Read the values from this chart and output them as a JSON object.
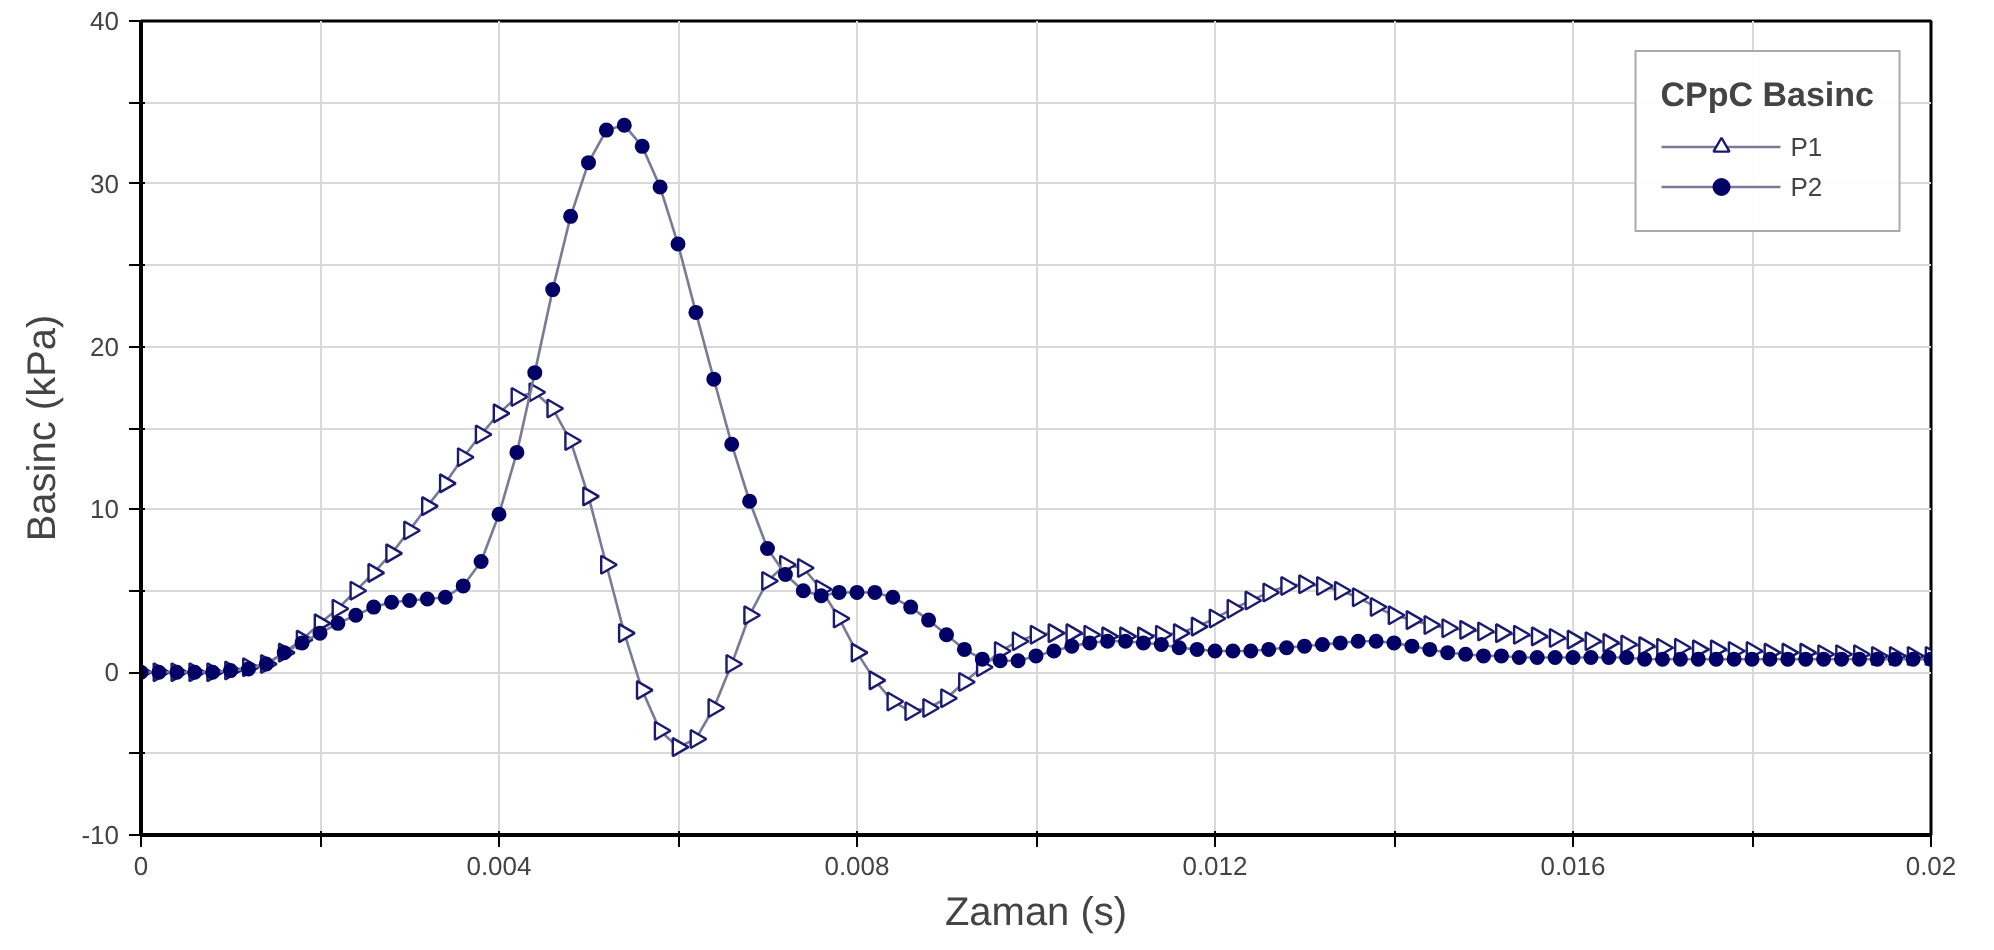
{
  "chart_data": {
    "type": "line",
    "xlabel": "Zaman (s)",
    "ylabel": "Basinc (kPa)",
    "legend_title": "CPpC Basinc",
    "x": [
      0,
      0.0002,
      0.0004,
      0.0006,
      0.0008,
      0.001,
      0.0012,
      0.0014,
      0.0016,
      0.0018,
      0.002,
      0.0022,
      0.0024,
      0.0026,
      0.0028,
      0.003,
      0.0032,
      0.0034,
      0.0036,
      0.0038,
      0.004,
      0.0042,
      0.0044,
      0.0046,
      0.0048,
      0.005,
      0.0052,
      0.0054,
      0.0056,
      0.0058,
      0.006,
      0.0062,
      0.0064,
      0.0066,
      0.0068,
      0.007,
      0.0072,
      0.0074,
      0.0076,
      0.0078,
      0.008,
      0.0082,
      0.0084,
      0.0086,
      0.0088,
      0.009,
      0.0092,
      0.0094,
      0.0096,
      0.0098,
      0.01,
      0.0102,
      0.0104,
      0.0106,
      0.0108,
      0.011,
      0.0112,
      0.0114,
      0.0116,
      0.0118,
      0.012,
      0.0122,
      0.0124,
      0.0126,
      0.0128,
      0.013,
      0.0132,
      0.0134,
      0.0136,
      0.0138,
      0.014,
      0.0142,
      0.0144,
      0.0146,
      0.0148,
      0.015,
      0.0152,
      0.0154,
      0.0156,
      0.0158,
      0.016,
      0.0162,
      0.0164,
      0.0166,
      0.0168,
      0.017,
      0.0172,
      0.0174,
      0.0176,
      0.0178,
      0.018,
      0.0182,
      0.0184,
      0.0186,
      0.0188,
      0.019,
      0.0192,
      0.0194,
      0.0196,
      0.0198,
      0.02
    ],
    "series": [
      {
        "name": "P1",
        "color": "#1a1a6e",
        "marker": "triangle",
        "values": [
          0,
          0,
          0,
          0,
          0,
          0.1,
          0.3,
          0.5,
          1.2,
          2.0,
          3.0,
          3.9,
          5.0,
          6.1,
          7.3,
          8.7,
          10.2,
          11.6,
          13.2,
          14.6,
          15.9,
          16.9,
          17.2,
          16.2,
          14.2,
          10.8,
          6.6,
          2.4,
          -1.1,
          -3.6,
          -4.6,
          -4.1,
          -2.2,
          0.5,
          3.5,
          5.6,
          6.6,
          6.4,
          5.1,
          3.3,
          1.2,
          -0.5,
          -1.8,
          -2.4,
          -2.2,
          -1.6,
          -0.6,
          0.3,
          1.3,
          1.9,
          2.3,
          2.4,
          2.4,
          2.3,
          2.2,
          2.2,
          2.2,
          2.3,
          2.4,
          2.8,
          3.3,
          3.9,
          4.4,
          4.9,
          5.3,
          5.4,
          5.3,
          5.0,
          4.6,
          4.0,
          3.5,
          3.2,
          2.9,
          2.7,
          2.6,
          2.5,
          2.4,
          2.3,
          2.2,
          2.1,
          2.0,
          1.9,
          1.8,
          1.7,
          1.6,
          1.5,
          1.5,
          1.4,
          1.4,
          1.3,
          1.3,
          1.2,
          1.2,
          1.2,
          1.1,
          1.1,
          1.1,
          1.0,
          1.0,
          1.0,
          1.0
        ]
      },
      {
        "name": "P2",
        "color": "#000066",
        "marker": "circle",
        "values": [
          0,
          0,
          0,
          0,
          0,
          0.1,
          0.2,
          0.5,
          1.2,
          1.8,
          2.4,
          3.0,
          3.5,
          4.0,
          4.3,
          4.4,
          4.5,
          4.6,
          5.3,
          6.8,
          9.7,
          13.5,
          18.4,
          23.5,
          28.0,
          31.3,
          33.3,
          33.6,
          32.3,
          29.8,
          26.3,
          22.1,
          18.0,
          14.0,
          10.5,
          7.6,
          6.0,
          5.0,
          4.7,
          4.9,
          4.9,
          4.9,
          4.6,
          4.0,
          3.2,
          2.3,
          1.4,
          0.8,
          0.7,
          0.7,
          1.0,
          1.3,
          1.6,
          1.8,
          1.9,
          1.9,
          1.8,
          1.7,
          1.5,
          1.4,
          1.3,
          1.3,
          1.3,
          1.4,
          1.5,
          1.6,
          1.7,
          1.8,
          1.9,
          1.9,
          1.8,
          1.6,
          1.4,
          1.2,
          1.1,
          1.0,
          1.0,
          0.9,
          0.9,
          0.9,
          0.9,
          0.9,
          0.9,
          0.9,
          0.8,
          0.8,
          0.8,
          0.8,
          0.8,
          0.8,
          0.8,
          0.8,
          0.8,
          0.8,
          0.8,
          0.8,
          0.8,
          0.8,
          0.8,
          0.8,
          0.8
        ]
      }
    ],
    "xlim": [
      0,
      0.02
    ],
    "ylim": [
      -10,
      40
    ],
    "xticks": [
      0,
      {
        "value": 0.002,
        "label": null
      },
      0.004,
      {
        "value": 0.006,
        "label": null
      },
      0.008,
      {
        "value": 0.01,
        "label": null
      },
      0.012,
      {
        "value": 0.014,
        "label": null
      },
      0.016,
      {
        "value": 0.018,
        "label": null
      },
      0.02
    ],
    "yticks": [
      -10,
      {
        "value": -5,
        "label": null
      },
      0,
      {
        "value": 5,
        "label": null
      },
      10,
      {
        "value": 15,
        "label": null
      },
      20,
      {
        "value": 25,
        "label": null
      },
      30,
      {
        "value": 35,
        "label": null
      },
      40
    ],
    "grid": true,
    "legend": "top right",
    "line_style": "solid"
  }
}
